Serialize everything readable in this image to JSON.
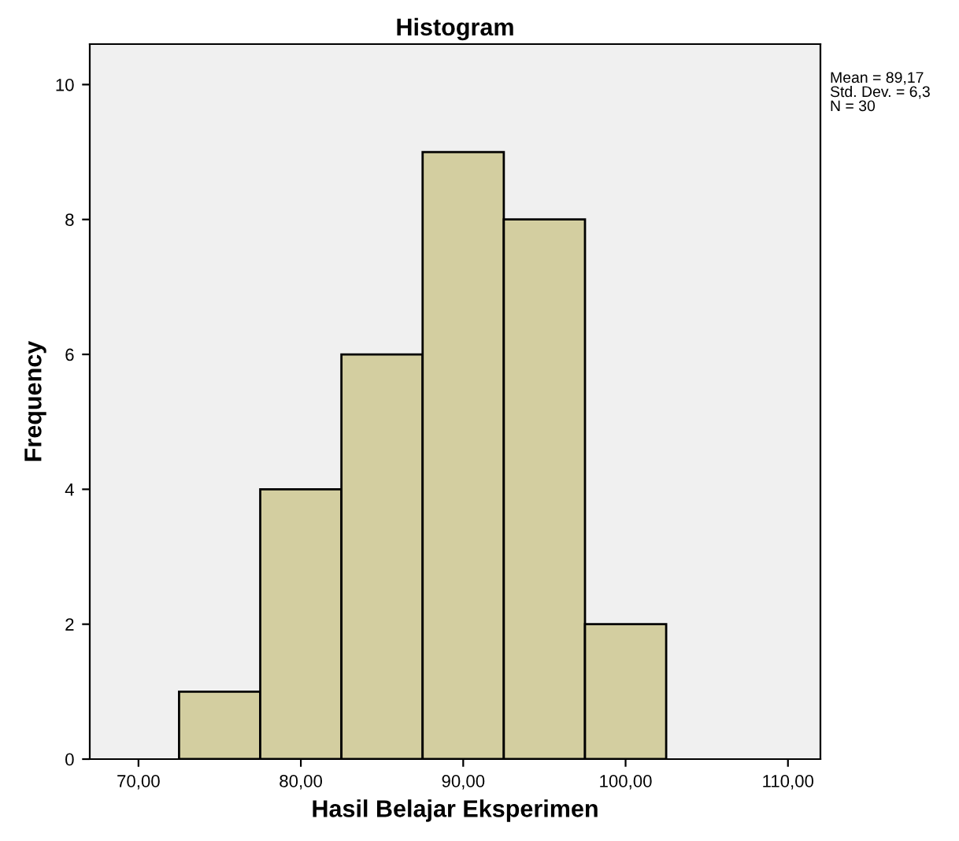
{
  "chart_data": {
    "type": "histogram",
    "title": "Histogram",
    "xlabel": "Hasil Belajar Eksperimen",
    "ylabel": "Frequency",
    "bins": [
      72.5,
      77.5,
      82.5,
      87.5,
      92.5,
      97.5,
      102.5
    ],
    "values": [
      1,
      4,
      6,
      9,
      8,
      2
    ],
    "color": "#d3cea0",
    "xlim": [
      67,
      112
    ],
    "xticks": [
      {
        "value": 70,
        "label": "70,00"
      },
      {
        "value": 80,
        "label": "80,00"
      },
      {
        "value": 90,
        "label": "90,00"
      },
      {
        "value": 100,
        "label": "100,00"
      },
      {
        "value": 110,
        "label": "110,00"
      }
    ],
    "ylim": [
      0,
      10.6
    ],
    "yticks": [
      0,
      2,
      4,
      6,
      8,
      10
    ],
    "grid": false,
    "annotations": [
      "Mean = 89,17",
      "Std. Dev. = 6,3",
      "N = 30"
    ]
  }
}
